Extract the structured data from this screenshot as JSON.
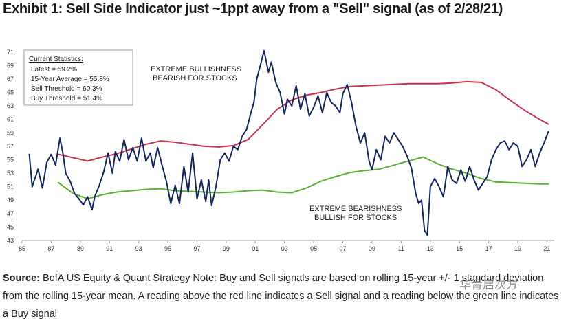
{
  "title": "Exhibit 1: Sell Side Indicator just ~1ppt away from a \"Sell\" signal (as of 2/28/21)",
  "source": {
    "label": "Source:",
    "text": " BofA US Equity & Quant Strategy Note: Buy and Sell signals are based on rolling 15-year +/- 1 standard deviation from the rolling 15-year mean. A reading above the red line indicates a Sell signal and a reading below the green line indicates a Buy signal"
  },
  "watermark": "华青启次方",
  "stats_box": {
    "heading": "Current Statistics:",
    "lines": [
      "Latest = 59.2%",
      "15-Year Average = 55.8%",
      "Sell Threshold = 60.3%",
      "Buy Threshold = 51.4%"
    ]
  },
  "annotations": {
    "top_line1": "EXTREME BULLISHNESS",
    "top_line2": "BEARISH FOR STOCKS",
    "bottom_line1": "EXTREME BEARISHNESS",
    "bottom_line2": "BULLISH FOR STOCKS"
  },
  "colors": {
    "indicator": "#14245c",
    "sell": "#c8334f",
    "buy": "#5ab033",
    "axis": "#999999",
    "text": "#1a1a1a"
  },
  "chart_data": {
    "type": "line",
    "xlim": [
      1985,
      2021.5
    ],
    "ylim": [
      43,
      72
    ],
    "x_ticks": [
      "85",
      "87",
      "89",
      "91",
      "93",
      "95",
      "97",
      "99",
      "01",
      "03",
      "05",
      "07",
      "09",
      "11",
      "13",
      "15",
      "17",
      "19",
      "21"
    ],
    "x_tick_years": [
      1985,
      1987,
      1989,
      1991,
      1993,
      1995,
      1997,
      1999,
      2001,
      2003,
      2005,
      2007,
      2009,
      2011,
      2013,
      2015,
      2017,
      2019,
      2021
    ],
    "y_ticks": [
      43,
      45,
      47,
      49,
      51,
      53,
      55,
      57,
      59,
      61,
      63,
      65,
      67,
      69,
      71
    ],
    "series": [
      {
        "key": "indicator",
        "x": [
          1985.5,
          1985.7,
          1985.9,
          1986.1,
          1986.4,
          1986.7,
          1987.0,
          1987.3,
          1987.6,
          1987.8,
          1988.0,
          1988.3,
          1988.6,
          1988.9,
          1989.2,
          1989.5,
          1989.8,
          1990.0,
          1990.3,
          1990.6,
          1990.9,
          1991.2,
          1991.4,
          1991.7,
          1992.0,
          1992.3,
          1992.6,
          1992.9,
          1993.2,
          1993.5,
          1993.8,
          1994.0,
          1994.3,
          1994.6,
          1994.9,
          1995.2,
          1995.5,
          1995.8,
          1996.1,
          1996.4,
          1996.7,
          1997.0,
          1997.3,
          1997.6,
          1997.8,
          1998.0,
          1998.3,
          1998.6,
          1998.9,
          1999.2,
          1999.5,
          1999.8,
          2000.1,
          2000.4,
          2000.7,
          2000.9,
          2001.1,
          2001.4,
          2001.6,
          2001.9,
          2002.1,
          2002.4,
          2002.7,
          2003.0,
          2003.2,
          2003.5,
          2003.8,
          2004.1,
          2004.4,
          2004.7,
          2005.0,
          2005.3,
          2005.6,
          2005.9,
          2006.2,
          2006.5,
          2006.8,
          2007.0,
          2007.3,
          2007.6,
          2007.9,
          2008.2,
          2008.5,
          2008.8,
          2009.0,
          2009.3,
          2009.6,
          2009.9,
          2010.2,
          2010.5,
          2010.8,
          2011.1,
          2011.4,
          2011.7,
          2012.0,
          2012.2,
          2012.4,
          2012.6,
          2012.8,
          2013.0,
          2013.3,
          2013.6,
          2013.9,
          2014.2,
          2014.5,
          2014.8,
          2015.1,
          2015.4,
          2015.7,
          2016.0,
          2016.3,
          2016.6,
          2016.9,
          2017.2,
          2017.5,
          2017.8,
          2018.1,
          2018.4,
          2018.7,
          2019.0,
          2019.3,
          2019.6,
          2019.9,
          2020.2,
          2020.5,
          2020.8,
          2021.1
        ],
        "y": [
          55.8,
          51.0,
          52.3,
          53.6,
          50.8,
          54.6,
          55.8,
          54.2,
          58.2,
          56.0,
          53.0,
          51.8,
          50.0,
          49.2,
          48.3,
          49.5,
          47.6,
          49.6,
          51.2,
          53.2,
          56.0,
          53.0,
          56.2,
          54.8,
          58.0,
          55.0,
          56.8,
          54.8,
          58.2,
          54.8,
          56.0,
          53.8,
          56.8,
          54.2,
          51.8,
          48.5,
          51.2,
          48.5,
          54.0,
          50.2,
          56.0,
          49.2,
          52.0,
          48.8,
          52.0,
          48.2,
          51.0,
          55.0,
          56.0,
          54.8,
          57.0,
          56.5,
          58.5,
          59.5,
          62.0,
          63.5,
          67.0,
          69.5,
          71.2,
          68.0,
          69.5,
          66.5,
          65.0,
          61.8,
          64.0,
          63.0,
          66.0,
          62.5,
          64.8,
          61.5,
          62.8,
          64.5,
          62.0,
          65.0,
          63.5,
          63.0,
          62.0,
          64.8,
          66.2,
          63.5,
          60.0,
          57.5,
          59.0,
          54.8,
          53.5,
          56.5,
          55.0,
          58.5,
          57.5,
          59.0,
          58.0,
          57.0,
          55.6,
          53.8,
          50.0,
          48.5,
          49.0,
          44.5,
          43.8,
          51.0,
          52.2,
          51.0,
          49.5,
          54.0,
          52.0,
          51.5,
          53.5,
          51.8,
          54.0,
          52.0,
          50.5,
          51.5,
          52.5,
          55.0,
          56.5,
          57.5,
          57.8,
          56.5,
          57.5,
          57.0,
          54.0,
          55.0,
          56.5,
          54.0,
          56.0,
          57.5,
          59.2
        ]
      },
      {
        "key": "sell",
        "x": [
          1987.5,
          1988.5,
          1989.5,
          1990.5,
          1991.5,
          1992.5,
          1993.5,
          1994.5,
          1995.5,
          1996.5,
          1997.5,
          1998.5,
          1999.5,
          2000.5,
          2001.5,
          2002.5,
          2003.5,
          2004.5,
          2005.5,
          2006.5,
          2007.5,
          2008.5,
          2009.5,
          2010.5,
          2011.5,
          2012.5,
          2013.5,
          2014.5,
          2015.5,
          2016.5,
          2017.5,
          2018.5,
          2019.5,
          2020.5,
          2021.1
        ],
        "y": [
          55.8,
          55.3,
          54.8,
          55.4,
          55.9,
          56.6,
          57.3,
          57.8,
          57.6,
          57.3,
          57.0,
          56.9,
          57.1,
          58.0,
          60.2,
          62.5,
          63.9,
          64.6,
          65.0,
          65.5,
          65.9,
          66.0,
          66.1,
          66.2,
          66.3,
          66.3,
          66.3,
          66.4,
          66.6,
          66.5,
          65.4,
          63.8,
          62.3,
          61.0,
          60.3
        ]
      },
      {
        "key": "buy",
        "x": [
          1987.5,
          1988.5,
          1989.5,
          1990.5,
          1991.5,
          1992.5,
          1993.5,
          1994.5,
          1995.5,
          1996.5,
          1997.5,
          1998.5,
          1999.5,
          2000.5,
          2001.5,
          2002.5,
          2003.5,
          2004.5,
          2005.5,
          2006.5,
          2007.5,
          2008.5,
          2009.5,
          2010.5,
          2011.5,
          2012.5,
          2013.5,
          2014.5,
          2015.5,
          2016.5,
          2017.5,
          2018.5,
          2019.5,
          2020.5,
          2021.1
        ],
        "y": [
          51.6,
          50.0,
          49.2,
          49.8,
          50.2,
          50.4,
          50.6,
          50.7,
          50.4,
          50.3,
          50.2,
          50.1,
          50.2,
          50.4,
          50.5,
          50.2,
          50.1,
          50.8,
          51.8,
          52.5,
          53.1,
          53.4,
          53.6,
          54.2,
          54.8,
          55.4,
          54.4,
          53.6,
          53.0,
          52.2,
          51.7,
          51.6,
          51.5,
          51.4,
          51.4
        ]
      }
    ]
  }
}
